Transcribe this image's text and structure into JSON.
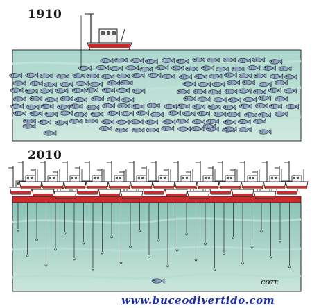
{
  "panels": {
    "top": {
      "year": "1910"
    },
    "bottom": {
      "year": "2010"
    }
  },
  "signature": "COTE",
  "watermark": "www.buceodivertido.com",
  "colors": {
    "sea_light": "#c8e4da",
    "sea_mid": "#9fcfc3",
    "sea_dark": "#6fb1a6",
    "boat_hull_red": "#cf2a2a",
    "fish": "#8fa4bf",
    "watermark_blue": "#1f2fa3"
  },
  "icons": [
    "fishing-boat-icon",
    "fish-school-icon",
    "fish-icon",
    "fishing-fleet-icon",
    "fishing-hook-icon"
  ]
}
